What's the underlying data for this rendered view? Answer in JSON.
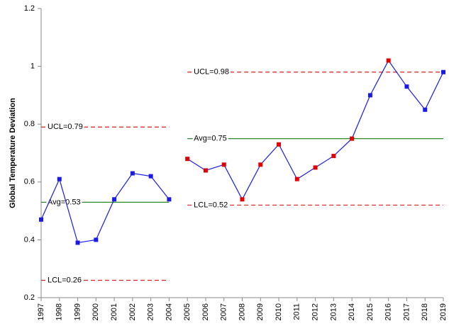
{
  "chart_data": {
    "type": "control",
    "y_label": "Global Temperature Deviation",
    "categories": [
      "1997",
      "1998",
      "1999",
      "2000",
      "2001",
      "2002",
      "2003",
      "2004",
      "2005",
      "2006",
      "2007",
      "2008",
      "2009",
      "2010",
      "2011",
      "2012",
      "2013",
      "2014",
      "2015",
      "2016",
      "2017",
      "2018",
      "2019"
    ],
    "series": [
      {
        "name": "Deviation",
        "color": "#1a1ae6",
        "values": [
          0.47,
          0.61,
          0.39,
          0.4,
          0.54,
          0.63,
          0.62,
          0.54,
          0.68,
          0.64,
          0.66,
          0.54,
          0.66,
          0.73,
          0.61,
          0.65,
          0.69,
          0.75,
          0.9,
          1.02,
          0.93,
          0.85,
          0.98
        ],
        "marker_colors": [
          "#1a1ae6",
          "#1a1ae6",
          "#1a1ae6",
          "#1a1ae6",
          "#1a1ae6",
          "#1a1ae6",
          "#1a1ae6",
          "#1a1ae6",
          "#e00000",
          "#e00000",
          "#e00000",
          "#e00000",
          "#e00000",
          "#e00000",
          "#e00000",
          "#e00000",
          "#e00000",
          "#e00000",
          "#1a1ae6",
          "#e00000",
          "#1a1ae6",
          "#1a1ae6",
          "#1a1ae6"
        ]
      }
    ],
    "phases": [
      {
        "from": "1997",
        "to": "2004",
        "ucl": 0.79,
        "avg": 0.53,
        "lcl": 0.26,
        "ucl_label": "UCL=0.79",
        "avg_label": "Avg=0.53",
        "lcl_label": "LCL=0.26"
      },
      {
        "from": "2005",
        "to": "2019",
        "ucl": 0.98,
        "avg": 0.75,
        "lcl": 0.52,
        "ucl_label": "UCL=0.98",
        "avg_label": "Avg=0.75",
        "lcl_label": "LCL=0.52"
      }
    ],
    "limit_color": "#d42020",
    "avg_color": "#2a8a2a",
    "ylim": [
      0.2,
      1.2
    ],
    "yticks": [
      0.2,
      0.4,
      0.6,
      0.8,
      1,
      1.2
    ],
    "grid": false
  }
}
